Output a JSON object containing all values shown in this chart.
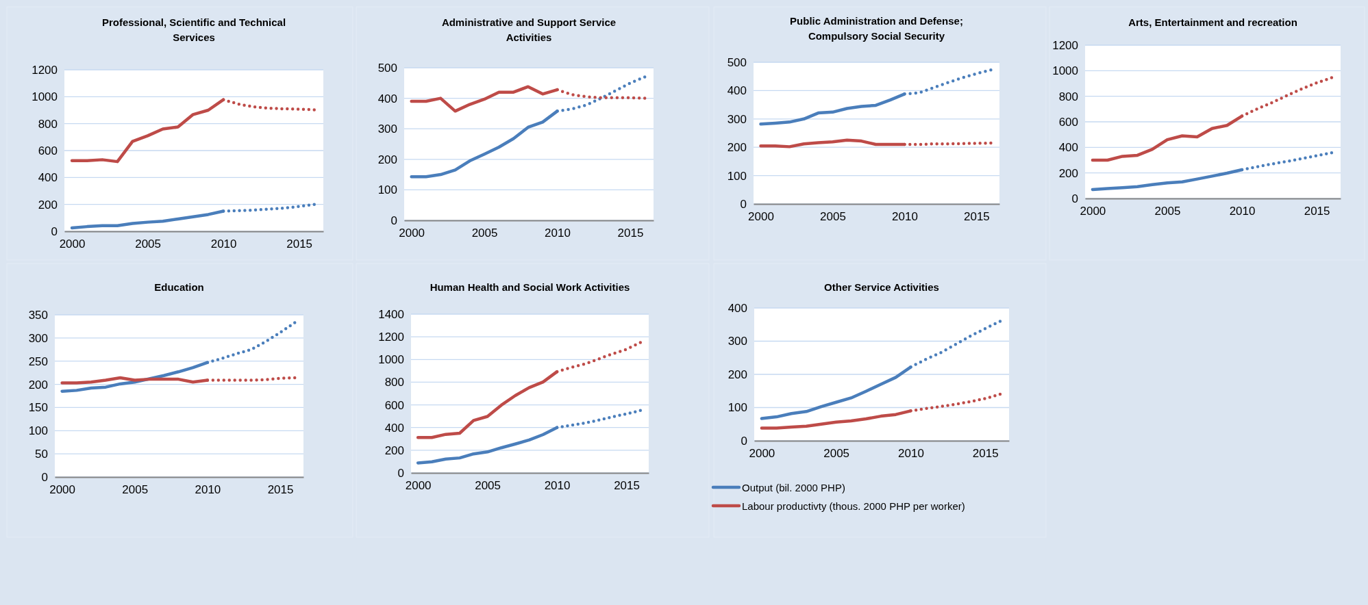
{
  "chart_data": [
    {
      "type": "line",
      "title": "Professional, Scientific and Technical Services",
      "xlim": [
        1999.5,
        2016.6
      ],
      "xticks": [
        2000,
        2005,
        2010,
        2015
      ],
      "ylim": [
        0,
        1200
      ],
      "yticks": [
        0,
        200,
        400,
        600,
        800,
        1000,
        1200
      ],
      "grid": "y",
      "legend": false,
      "series": [
        {
          "color": "#4a7ebb",
          "line_style": "solid",
          "x": [
            2000,
            2001,
            2002,
            2003,
            2004,
            2005,
            2006,
            2007,
            2008,
            2009,
            2010
          ],
          "values": [
            25,
            35,
            42,
            42,
            58,
            68,
            75,
            92,
            108,
            125,
            150
          ]
        },
        {
          "color": "#4a7ebb",
          "line_style": "dotted",
          "x": [
            2010,
            2011,
            2012,
            2013,
            2014,
            2015,
            2016
          ],
          "values": [
            150,
            153,
            158,
            165,
            172,
            185,
            200
          ]
        },
        {
          "color": "#be4b48",
          "line_style": "solid",
          "x": [
            2000,
            2001,
            2002,
            2003,
            2004,
            2005,
            2006,
            2007,
            2008,
            2009,
            2010
          ],
          "values": [
            525,
            525,
            532,
            518,
            668,
            710,
            760,
            775,
            868,
            900,
            978
          ]
        },
        {
          "color": "#be4b48",
          "line_style": "dotted",
          "x": [
            2010,
            2011,
            2012,
            2013,
            2014,
            2015,
            2016
          ],
          "values": [
            978,
            945,
            925,
            915,
            910,
            908,
            903
          ]
        }
      ]
    },
    {
      "type": "line",
      "title": "Administrative and Support Service Activities",
      "xlim": [
        1999.5,
        2016.6
      ],
      "xticks": [
        2000,
        2005,
        2010,
        2015
      ],
      "ylim": [
        0,
        500
      ],
      "yticks": [
        0,
        100,
        200,
        300,
        400,
        500
      ],
      "grid": "y",
      "legend": false,
      "series": [
        {
          "color": "#4a7ebb",
          "line_style": "solid",
          "x": [
            2000,
            2001,
            2002,
            2003,
            2004,
            2005,
            2006,
            2007,
            2008,
            2009,
            2010
          ],
          "values": [
            143,
            143,
            150,
            165,
            195,
            217,
            240,
            268,
            305,
            322,
            358
          ]
        },
        {
          "color": "#4a7ebb",
          "line_style": "dotted",
          "x": [
            2010,
            2011,
            2012,
            2013,
            2014,
            2015,
            2016
          ],
          "values": [
            358,
            365,
            378,
            400,
            425,
            450,
            470
          ]
        },
        {
          "color": "#be4b48",
          "line_style": "solid",
          "x": [
            2000,
            2001,
            2002,
            2003,
            2004,
            2005,
            2006,
            2007,
            2008,
            2009,
            2010
          ],
          "values": [
            390,
            390,
            400,
            358,
            380,
            397,
            420,
            420,
            438,
            414,
            428
          ]
        },
        {
          "color": "#be4b48",
          "line_style": "dotted",
          "x": [
            2010,
            2011,
            2012,
            2013,
            2014,
            2015,
            2016
          ],
          "values": [
            428,
            412,
            405,
            402,
            402,
            402,
            400
          ]
        }
      ]
    },
    {
      "type": "line",
      "title": "Public Administration and Defense; Compulsory Social Security",
      "xlim": [
        1999.5,
        2016.6
      ],
      "xticks": [
        2000,
        2005,
        2010,
        2015
      ],
      "ylim": [
        0,
        500
      ],
      "yticks": [
        0,
        100,
        200,
        300,
        400,
        500
      ],
      "grid": "y",
      "legend": false,
      "series": [
        {
          "color": "#4a7ebb",
          "line_style": "solid",
          "x": [
            2000,
            2001,
            2002,
            2003,
            2004,
            2005,
            2006,
            2007,
            2008,
            2009,
            2010
          ],
          "values": [
            282,
            285,
            289,
            300,
            321,
            324,
            337,
            344,
            348,
            367,
            388
          ]
        },
        {
          "color": "#4a7ebb",
          "line_style": "dotted",
          "x": [
            2010,
            2011,
            2012,
            2013,
            2014,
            2015,
            2016
          ],
          "values": [
            388,
            392,
            410,
            428,
            445,
            460,
            473
          ]
        },
        {
          "color": "#be4b48",
          "line_style": "solid",
          "x": [
            2000,
            2001,
            2002,
            2003,
            2004,
            2005,
            2006,
            2007,
            2008,
            2009,
            2010
          ],
          "values": [
            205,
            205,
            202,
            212,
            216,
            219,
            225,
            222,
            210,
            210,
            210
          ]
        },
        {
          "color": "#be4b48",
          "line_style": "dotted",
          "x": [
            2010,
            2011,
            2012,
            2013,
            2014,
            2015,
            2016
          ],
          "values": [
            210,
            210,
            212,
            212,
            213,
            214,
            215
          ]
        }
      ]
    },
    {
      "type": "line",
      "title": "Arts, Entertainment and recreation",
      "xlim": [
        1999.5,
        2016.6
      ],
      "xticks": [
        2000,
        2005,
        2010,
        2015
      ],
      "ylim": [
        0,
        1200
      ],
      "yticks": [
        0,
        200,
        400,
        600,
        800,
        1000,
        1200
      ],
      "grid": "y",
      "legend": false,
      "series": [
        {
          "color": "#4a7ebb",
          "line_style": "solid",
          "x": [
            2000,
            2001,
            2002,
            2003,
            2004,
            2005,
            2006,
            2007,
            2008,
            2009,
            2010
          ],
          "values": [
            70,
            78,
            85,
            92,
            108,
            122,
            130,
            152,
            175,
            198,
            225
          ]
        },
        {
          "color": "#4a7ebb",
          "line_style": "dotted",
          "x": [
            2010,
            2011,
            2012,
            2013,
            2014,
            2015,
            2016
          ],
          "values": [
            225,
            248,
            270,
            290,
            312,
            335,
            358
          ]
        },
        {
          "color": "#be4b48",
          "line_style": "solid",
          "x": [
            2000,
            2001,
            2002,
            2003,
            2004,
            2005,
            2006,
            2007,
            2008,
            2009,
            2010
          ],
          "values": [
            300,
            300,
            330,
            338,
            385,
            460,
            490,
            482,
            548,
            572,
            645
          ]
        },
        {
          "color": "#be4b48",
          "line_style": "dotted",
          "x": [
            2010,
            2011,
            2012,
            2013,
            2014,
            2015,
            2016
          ],
          "values": [
            645,
            700,
            750,
            805,
            858,
            905,
            945
          ]
        }
      ]
    },
    {
      "type": "line",
      "title": "Education",
      "xlim": [
        1999.5,
        2016.6
      ],
      "xticks": [
        2000,
        2005,
        2010,
        2015
      ],
      "ylim": [
        0,
        350
      ],
      "yticks": [
        0,
        50,
        100,
        150,
        200,
        250,
        300,
        350
      ],
      "grid": "y",
      "legend": false,
      "series": [
        {
          "color": "#4a7ebb",
          "line_style": "solid",
          "x": [
            2000,
            2001,
            2002,
            2003,
            2004,
            2005,
            2006,
            2007,
            2008,
            2009,
            2010
          ],
          "values": [
            185,
            187,
            192,
            194,
            201,
            205,
            212,
            219,
            227,
            236,
            247
          ]
        },
        {
          "color": "#4a7ebb",
          "line_style": "dotted",
          "x": [
            2010,
            2011,
            2012,
            2013,
            2014,
            2015,
            2016
          ],
          "values": [
            247,
            256,
            266,
            275,
            292,
            312,
            333
          ]
        },
        {
          "color": "#be4b48",
          "line_style": "solid",
          "x": [
            2000,
            2001,
            2002,
            2003,
            2004,
            2005,
            2006,
            2007,
            2008,
            2009,
            2010
          ],
          "values": [
            203,
            203,
            205,
            209,
            214,
            209,
            211,
            211,
            211,
            205,
            209
          ]
        },
        {
          "color": "#be4b48",
          "line_style": "dotted",
          "x": [
            2010,
            2011,
            2012,
            2013,
            2014,
            2015,
            2016
          ],
          "values": [
            209,
            209,
            209,
            209,
            210,
            213,
            214
          ]
        }
      ]
    },
    {
      "type": "line",
      "title": "Human Health and Social Work Activities",
      "xlim": [
        1999.5,
        2016.6
      ],
      "xticks": [
        2000,
        2005,
        2010,
        2015
      ],
      "ylim": [
        0,
        1400
      ],
      "yticks": [
        0,
        200,
        400,
        600,
        800,
        1000,
        1200,
        1400
      ],
      "grid": "y",
      "legend": false,
      "series": [
        {
          "color": "#4a7ebb",
          "line_style": "solid",
          "x": [
            2000,
            2001,
            2002,
            2003,
            2004,
            2005,
            2006,
            2007,
            2008,
            2009,
            2010
          ],
          "values": [
            88,
            98,
            122,
            132,
            168,
            185,
            222,
            255,
            290,
            338,
            400
          ]
        },
        {
          "color": "#4a7ebb",
          "line_style": "dotted",
          "x": [
            2010,
            2011,
            2012,
            2013,
            2014,
            2015,
            2016
          ],
          "values": [
            400,
            420,
            440,
            465,
            495,
            520,
            550
          ]
        },
        {
          "color": "#be4b48",
          "line_style": "solid",
          "x": [
            2000,
            2001,
            2002,
            2003,
            2004,
            2005,
            2006,
            2007,
            2008,
            2009,
            2010
          ],
          "values": [
            312,
            312,
            340,
            350,
            462,
            498,
            598,
            682,
            752,
            802,
            892
          ]
        },
        {
          "color": "#be4b48",
          "line_style": "dotted",
          "x": [
            2010,
            2011,
            2012,
            2013,
            2014,
            2015,
            2016
          ],
          "values": [
            892,
            930,
            960,
            1005,
            1050,
            1090,
            1150
          ]
        }
      ]
    },
    {
      "type": "line",
      "title": "Other Service Activities",
      "xlim": [
        1999.5,
        2016.6
      ],
      "xticks": [
        2000,
        2005,
        2010,
        2015
      ],
      "ylim": [
        0,
        400
      ],
      "yticks": [
        0,
        100,
        200,
        300,
        400
      ],
      "grid": "y",
      "legend": "bottom",
      "series": [
        {
          "name": "Output (bil. 2000 PHP)",
          "color": "#4a7ebb",
          "line_style": "solid",
          "x": [
            2000,
            2001,
            2002,
            2003,
            2004,
            2005,
            2006,
            2007,
            2008,
            2009,
            2010
          ],
          "values": [
            67,
            72,
            82,
            88,
            103,
            116,
            129,
            149,
            170,
            191,
            222
          ]
        },
        {
          "color": "#4a7ebb",
          "line_style": "dotted",
          "x": [
            2010,
            2011,
            2012,
            2013,
            2014,
            2015,
            2016
          ],
          "values": [
            222,
            245,
            265,
            290,
            315,
            338,
            360
          ]
        },
        {
          "name": "Labour productivty (thous. 2000 PHP per worker)",
          "color": "#be4b48",
          "line_style": "solid",
          "x": [
            2000,
            2001,
            2002,
            2003,
            2004,
            2005,
            2006,
            2007,
            2008,
            2009,
            2010
          ],
          "values": [
            38,
            38,
            41,
            44,
            50,
            56,
            60,
            66,
            74,
            79,
            90
          ]
        },
        {
          "color": "#be4b48",
          "line_style": "dotted",
          "x": [
            2010,
            2011,
            2012,
            2013,
            2014,
            2015,
            2016
          ],
          "values": [
            90,
            97,
            103,
            110,
            118,
            127,
            140
          ]
        }
      ]
    }
  ]
}
